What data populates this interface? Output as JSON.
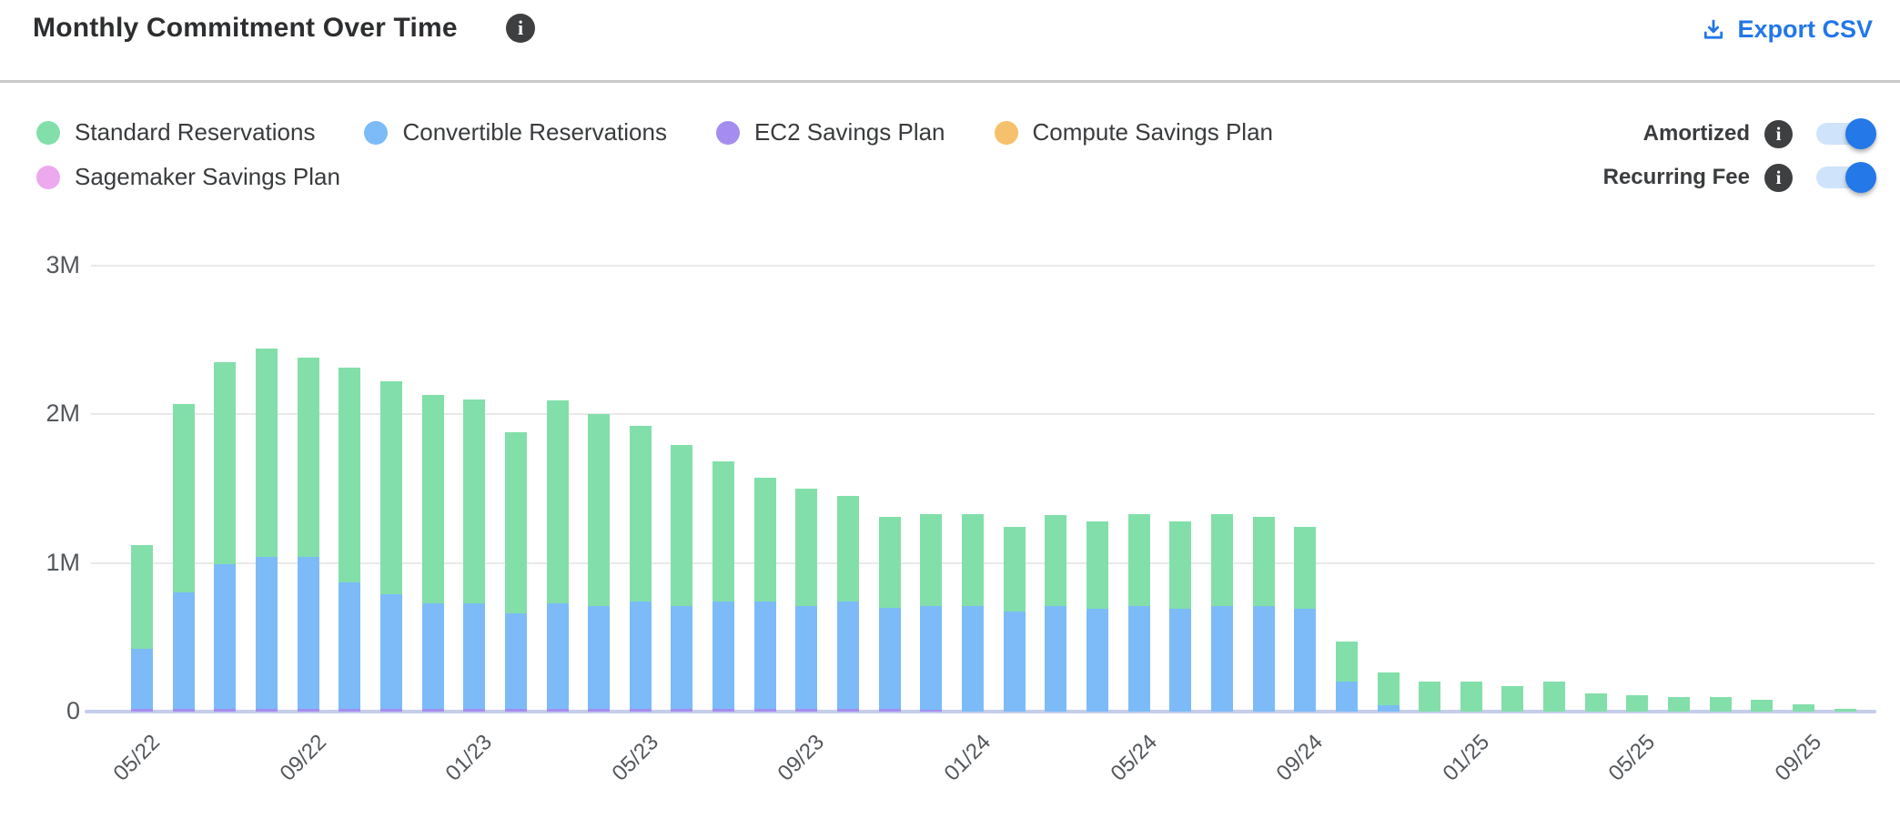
{
  "header": {
    "title": "Monthly Commitment Over Time",
    "title_info_icon": "i",
    "export_label": "Export CSV"
  },
  "legend": {
    "items": [
      {
        "label": "Standard Reservations",
        "color": "#82dfaa"
      },
      {
        "label": "Convertible Reservations",
        "color": "#7cbbf8"
      },
      {
        "label": "EC2 Savings Plan",
        "color": "#a58df0"
      },
      {
        "label": "Compute Savings Plan",
        "color": "#f6c16c"
      },
      {
        "label": "Sagemaker Savings Plan",
        "color": "#eca9ee"
      }
    ]
  },
  "toggles": [
    {
      "label": "Amortized",
      "on": true
    },
    {
      "label": "Recurring Fee",
      "on": true
    }
  ],
  "chart_data": {
    "type": "bar",
    "stacked": true,
    "unit": "millions (M) of currency per month",
    "title": "Monthly Commitment Over Time",
    "ylim_millions": [
      0,
      3
    ],
    "y_ticks": [
      "0",
      "1M",
      "2M",
      "3M"
    ],
    "grid": true,
    "x_tick_every": 4,
    "x_tick_labels": [
      "05/22",
      "09/22",
      "01/23",
      "05/23",
      "09/23",
      "01/24",
      "05/24",
      "09/24",
      "01/25",
      "05/25",
      "09/25"
    ],
    "x": [
      "05/22",
      "06/22",
      "07/22",
      "08/22",
      "09/22",
      "10/22",
      "11/22",
      "12/22",
      "01/23",
      "02/23",
      "03/23",
      "04/23",
      "05/23",
      "06/23",
      "07/23",
      "08/23",
      "09/23",
      "10/23",
      "11/23",
      "12/23",
      "01/24",
      "02/24",
      "03/24",
      "04/24",
      "05/24",
      "06/24",
      "07/24",
      "08/24",
      "09/24",
      "10/24",
      "11/24",
      "12/24",
      "01/25",
      "02/25",
      "03/25",
      "04/25",
      "05/25",
      "06/25",
      "07/25",
      "08/25",
      "09/25",
      "10/25"
    ],
    "series": [
      {
        "name": "EC2 Savings Plan",
        "color": "#a58df0",
        "values": [
          0.02,
          0.02,
          0.02,
          0.02,
          0.02,
          0.02,
          0.02,
          0.02,
          0.02,
          0.02,
          0.02,
          0.02,
          0.02,
          0.02,
          0.02,
          0.02,
          0.02,
          0.02,
          0.02,
          0.01,
          0,
          0,
          0,
          0,
          0,
          0,
          0,
          0,
          0,
          0,
          0,
          0,
          0,
          0,
          0,
          0,
          0,
          0,
          0,
          0,
          0,
          0
        ]
      },
      {
        "name": "Convertible Reservations",
        "color": "#7cbbf8",
        "values": [
          0.4,
          0.78,
          0.97,
          1.02,
          1.02,
          0.85,
          0.77,
          0.71,
          0.71,
          0.64,
          0.71,
          0.69,
          0.72,
          0.69,
          0.72,
          0.72,
          0.69,
          0.72,
          0.68,
          0.7,
          0.71,
          0.67,
          0.71,
          0.69,
          0.71,
          0.69,
          0.71,
          0.71,
          0.69,
          0.2,
          0.04,
          0,
          0,
          0,
          0,
          0,
          0,
          0,
          0,
          0,
          0,
          0
        ]
      },
      {
        "name": "Standard Reservations",
        "color": "#82dfaa",
        "values": [
          0.7,
          1.27,
          1.36,
          1.4,
          1.34,
          1.44,
          1.43,
          1.4,
          1.37,
          1.22,
          1.36,
          1.29,
          1.18,
          1.08,
          0.94,
          0.83,
          0.79,
          0.71,
          0.61,
          0.62,
          0.62,
          0.57,
          0.61,
          0.59,
          0.62,
          0.59,
          0.62,
          0.6,
          0.55,
          0.27,
          0.22,
          0.2,
          0.2,
          0.17,
          0.2,
          0.12,
          0.11,
          0.1,
          0.1,
          0.08,
          0.05,
          0.02
        ]
      },
      {
        "name": "Compute Savings Plan",
        "color": "#f6c16c",
        "values": [
          0,
          0,
          0,
          0,
          0,
          0,
          0,
          0,
          0,
          0,
          0,
          0,
          0,
          0,
          0,
          0,
          0,
          0,
          0,
          0,
          0,
          0,
          0,
          0,
          0,
          0,
          0,
          0,
          0,
          0,
          0,
          0,
          0,
          0,
          0,
          0,
          0,
          0,
          0,
          0,
          0,
          0
        ]
      },
      {
        "name": "Sagemaker Savings Plan",
        "color": "#eca9ee",
        "values": [
          0,
          0,
          0,
          0,
          0,
          0,
          0,
          0,
          0,
          0,
          0,
          0,
          0,
          0,
          0,
          0,
          0,
          0,
          0,
          0,
          0,
          0,
          0,
          0,
          0,
          0,
          0,
          0,
          0,
          0,
          0,
          0,
          0,
          0,
          0,
          0,
          0,
          0,
          0,
          0,
          0,
          0
        ]
      }
    ],
    "legend_position": "top-left"
  }
}
